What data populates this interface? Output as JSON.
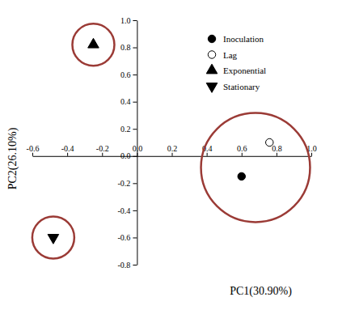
{
  "chart_data": {
    "type": "scatter",
    "x_label": "PC1(30.90%)",
    "y_label": "PC2(26.10%)",
    "xlim": [
      -0.6,
      1.0
    ],
    "ylim": [
      -0.8,
      1.0
    ],
    "xticks": [
      -0.6,
      -0.4,
      -0.2,
      {
        "value": 0,
        "label": "0.0"
      },
      0.2,
      0.4,
      0.6,
      0.8,
      {
        "value": 1,
        "label": "1.0"
      }
    ],
    "yticks": [
      -0.8,
      -0.6,
      -0.4,
      -0.2,
      {
        "value": 0,
        "label": "0.0"
      },
      0.2,
      0.4,
      0.6,
      0.8,
      {
        "value": 1,
        "label": "1.0"
      }
    ],
    "legend": "top-right",
    "series": [
      {
        "name": "Inoculation",
        "color": "#000000",
        "marker": "circle",
        "x": [
          0.6
        ],
        "values": [
          -0.15
        ]
      },
      {
        "name": "Lag",
        "color": "#000000",
        "marker": "circle-open",
        "x": [
          0.76
        ],
        "values": [
          0.1
        ]
      },
      {
        "name": "Exponential",
        "color": "#000000",
        "marker": "triangle-up",
        "x": [
          -0.25
        ],
        "values": [
          0.82
        ]
      },
      {
        "name": "Stationary",
        "color": "#000000",
        "marker": "triangle-down",
        "x": [
          -0.48
        ],
        "values": [
          -0.6
        ]
      }
    ]
  }
}
